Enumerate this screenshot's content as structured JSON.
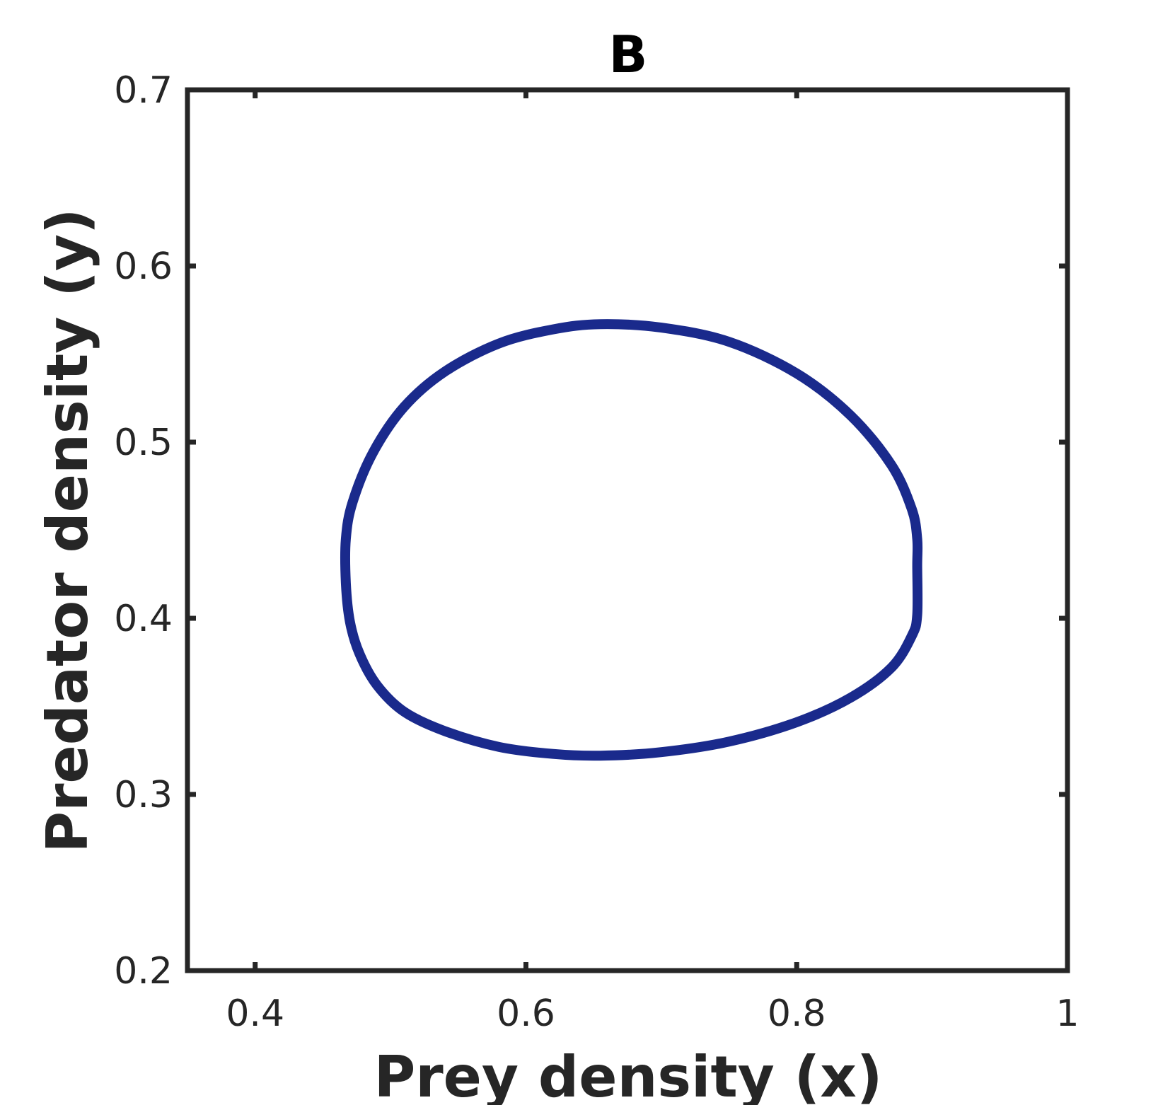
{
  "chart_data": {
    "type": "line",
    "title": "B",
    "xlabel": "Prey density (x)",
    "ylabel": "Predator density (y)",
    "xlim": [
      0.35,
      1.0
    ],
    "ylim": [
      0.2,
      0.7
    ],
    "xticks": [
      0.4,
      0.6,
      0.8,
      1.0
    ],
    "xtick_labels": [
      "0.4",
      "0.6",
      "0.8",
      "1"
    ],
    "yticks": [
      0.2,
      0.3,
      0.4,
      0.5,
      0.6,
      0.7
    ],
    "ytick_labels": [
      "0.2",
      "0.3",
      "0.4",
      "0.5",
      "0.6",
      "0.7"
    ],
    "grid": false,
    "series": [
      {
        "color": "#1a2a8c",
        "closed": true,
        "points": [
          [
            0.467,
            0.42
          ],
          [
            0.47,
            0.398
          ],
          [
            0.477,
            0.38
          ],
          [
            0.49,
            0.362
          ],
          [
            0.51,
            0.347
          ],
          [
            0.54,
            0.336
          ],
          [
            0.58,
            0.327
          ],
          [
            0.62,
            0.323
          ],
          [
            0.655,
            0.322
          ],
          [
            0.7,
            0.324
          ],
          [
            0.75,
            0.33
          ],
          [
            0.8,
            0.341
          ],
          [
            0.84,
            0.355
          ],
          [
            0.87,
            0.372
          ],
          [
            0.885,
            0.39
          ],
          [
            0.889,
            0.402
          ],
          [
            0.889,
            0.43
          ],
          [
            0.889,
            0.445
          ],
          [
            0.885,
            0.462
          ],
          [
            0.87,
            0.487
          ],
          [
            0.84,
            0.515
          ],
          [
            0.8,
            0.539
          ],
          [
            0.75,
            0.557
          ],
          [
            0.7,
            0.565
          ],
          [
            0.655,
            0.567
          ],
          [
            0.62,
            0.564
          ],
          [
            0.58,
            0.556
          ],
          [
            0.54,
            0.54
          ],
          [
            0.51,
            0.52
          ],
          [
            0.487,
            0.494
          ],
          [
            0.472,
            0.466
          ],
          [
            0.467,
            0.445
          ]
        ]
      }
    ]
  }
}
